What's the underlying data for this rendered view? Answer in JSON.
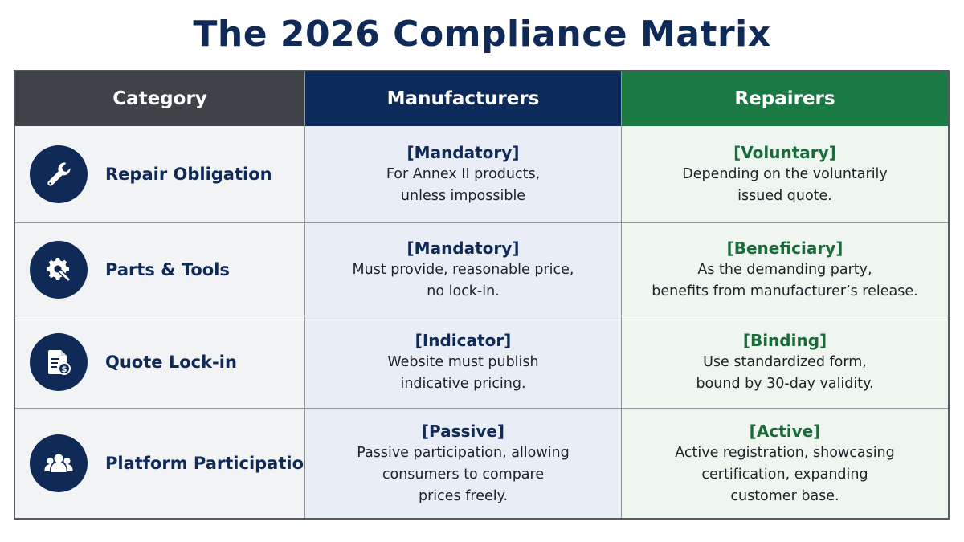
{
  "title": "The 2026 Compliance Matrix",
  "columns": {
    "category": "Category",
    "manufacturers": "Manufacturers",
    "repairers": "Repairers"
  },
  "colors": {
    "title": "#0f2a57",
    "header_category": "#3f4347",
    "header_manufacturers": "#0c2a5a",
    "header_repairers": "#1b7a43",
    "icon_circle": "#0f2a57",
    "manufacturers_tag": "#0f2a57",
    "repairers_tag": "#1b6b3a"
  },
  "rows": [
    {
      "icon": "wrench-icon",
      "category": "Repair Obligation",
      "manufacturers": {
        "tag": "[Mandatory]",
        "lines": [
          "For Annex II products,",
          "unless impossible"
        ]
      },
      "repairers": {
        "tag": "[Voluntary]",
        "lines": [
          "Depending on the voluntarily",
          "issued quote."
        ]
      }
    },
    {
      "icon": "gear-wrench-icon",
      "category": "Parts & Tools",
      "manufacturers": {
        "tag": "[Mandatory]",
        "lines": [
          "Must provide, reasonable price,",
          "no lock-in."
        ]
      },
      "repairers": {
        "tag": "[Beneficiary]",
        "lines": [
          "As the demanding party,",
          "benefits from manufacturer’s release."
        ]
      }
    },
    {
      "icon": "document-dollar-icon",
      "category": "Quote Lock-in",
      "manufacturers": {
        "tag": "[Indicator]",
        "lines": [
          "Website must publish",
          "indicative pricing."
        ]
      },
      "repairers": {
        "tag": "[Binding]",
        "lines": [
          "Use standardized form,",
          "bound by 30-day validity."
        ]
      }
    },
    {
      "icon": "users-icon",
      "category": "Platform Participation",
      "manufacturers": {
        "tag": "[Passive]",
        "lines": [
          "Passive participation, allowing",
          "consumers to compare",
          "prices freely."
        ]
      },
      "repairers": {
        "tag": "[Active]",
        "lines": [
          "Active registration, showcasing",
          "certification, expanding",
          "customer base."
        ]
      }
    }
  ]
}
